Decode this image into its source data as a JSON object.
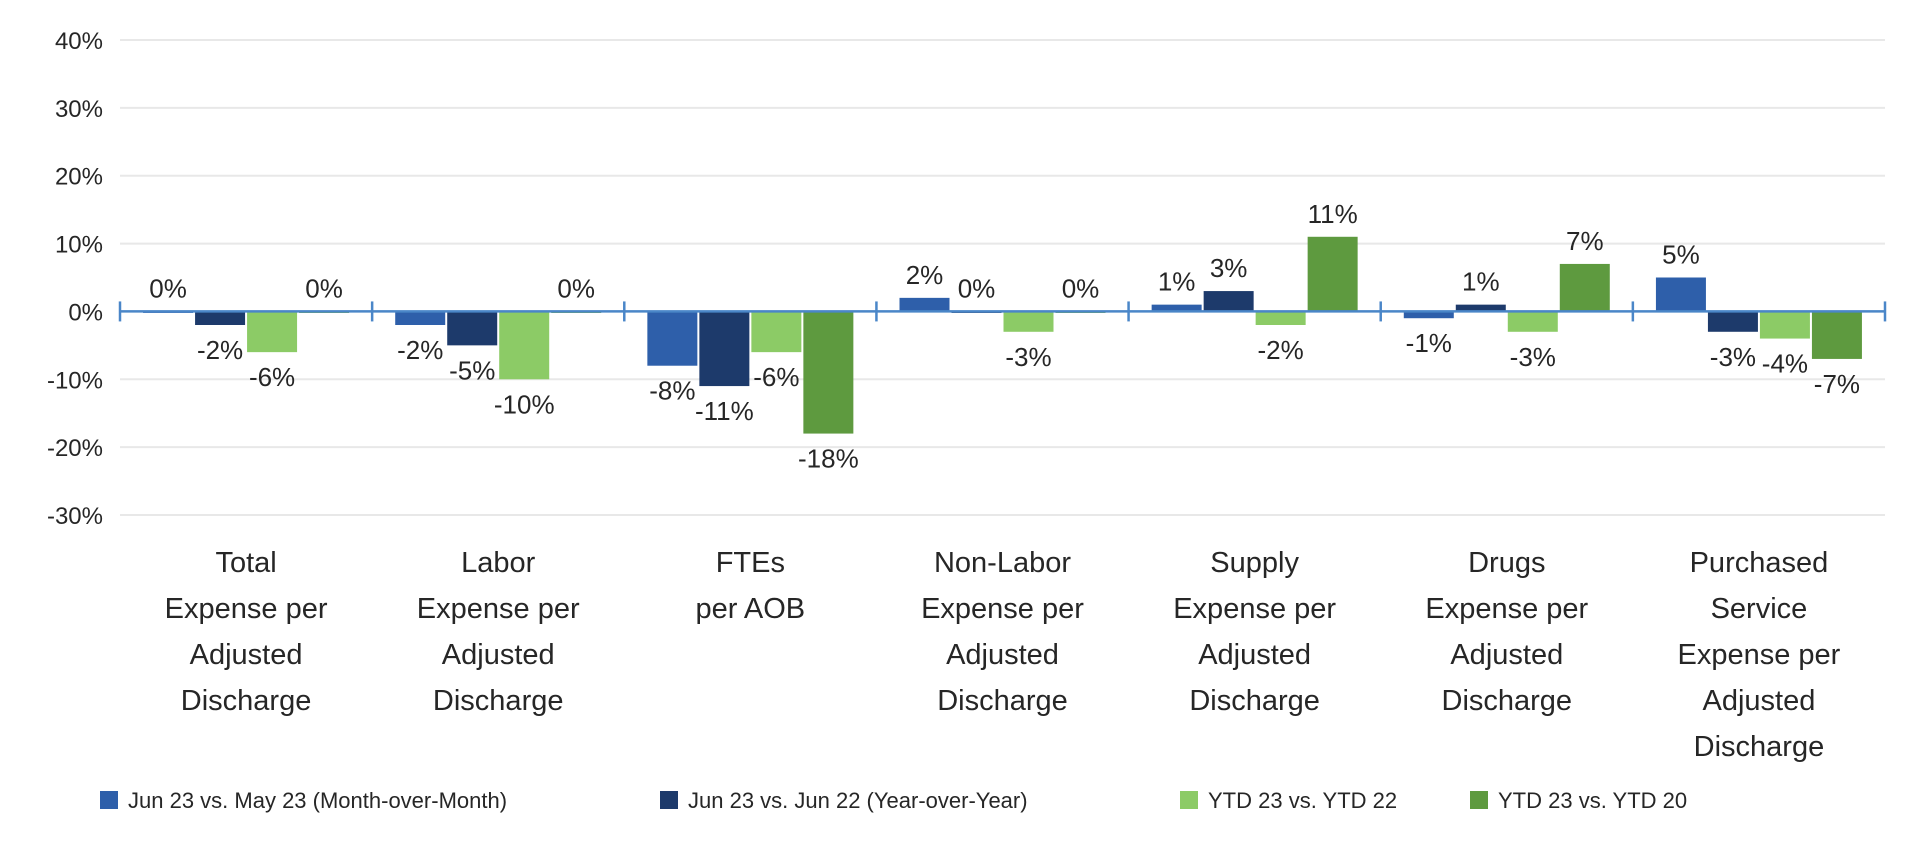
{
  "chart_data": {
    "type": "bar",
    "title": "",
    "xlabel": "",
    "ylabel": "",
    "ylim": [
      -30,
      40
    ],
    "yticks": [
      40,
      30,
      20,
      10,
      0,
      -10,
      -20,
      -30
    ],
    "ytick_labels": [
      "40%",
      "30%",
      "20%",
      "10%",
      "0%",
      "-10%",
      "-20%",
      "-30%"
    ],
    "grid": true,
    "legend_position": "bottom",
    "categories": [
      [
        "Total",
        "Expense per",
        "Adjusted",
        "Discharge"
      ],
      [
        "Labor",
        "Expense per",
        "Adjusted",
        "Discharge"
      ],
      [
        "FTEs",
        "per AOB"
      ],
      [
        "Non-Labor",
        "Expense per",
        "Adjusted",
        "Discharge"
      ],
      [
        "Supply",
        "Expense per",
        "Adjusted",
        "Discharge"
      ],
      [
        "Drugs",
        "Expense per",
        "Adjusted",
        "Discharge"
      ],
      [
        "Purchased",
        "Service",
        "Expense per",
        "Adjusted",
        "Discharge"
      ]
    ],
    "series": [
      {
        "name": "Jun 23 vs. May 23 (Month-over-Month)",
        "color": "#2e5faa",
        "values": [
          0,
          -2,
          -8,
          2,
          1,
          -1,
          5
        ],
        "labels": [
          "0%",
          "-2%",
          "-8%",
          "2%",
          "1%",
          "-1%",
          "5%"
        ]
      },
      {
        "name": "Jun 23 vs. Jun 22 (Year-over-Year)",
        "color": "#1d3a6b",
        "values": [
          -2,
          -5,
          -11,
          0,
          3,
          1,
          -3
        ],
        "labels": [
          "-2%",
          "-5%",
          "-11%",
          "0%",
          "3%",
          "1%",
          "-3%"
        ]
      },
      {
        "name": "YTD 23 vs. YTD 22",
        "color": "#8ccb66",
        "values": [
          -6,
          -10,
          -6,
          -3,
          -2,
          -3,
          -4
        ],
        "labels": [
          "-6%",
          "-10%",
          "-6%",
          "-3%",
          "-2%",
          "-3%",
          "-4%"
        ]
      },
      {
        "name": "YTD 23 vs. YTD 20",
        "color": "#5e9a3f",
        "values": [
          0,
          0,
          -18,
          0,
          11,
          7,
          -7
        ],
        "labels": [
          "0%",
          "0%",
          "-18%",
          "0%",
          "11%",
          "7%",
          "-7%"
        ]
      }
    ]
  },
  "colors": {
    "axis": "#4a86c8",
    "grid": "#e8e8e8"
  }
}
